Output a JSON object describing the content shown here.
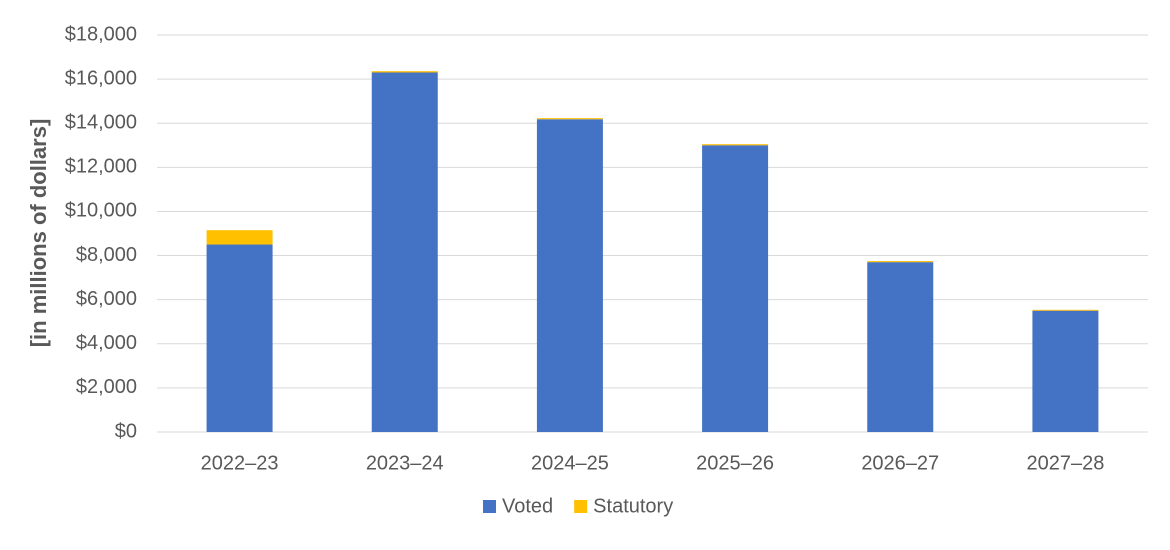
{
  "chart_data": {
    "type": "stacked_bar",
    "y_label": "[in millions of dollars]",
    "categories": [
      "2022–23",
      "2023–24",
      "2024–25",
      "2025–26",
      "2026–27",
      "2027–28"
    ],
    "series": [
      {
        "name": "Voted",
        "color": "#4472c4",
        "values": [
          8500,
          16300,
          14180,
          13000,
          7700,
          5500
        ]
      },
      {
        "name": "Statutory",
        "color": "#ffc000",
        "values": [
          650,
          60,
          50,
          50,
          50,
          40
        ]
      }
    ],
    "ylim": [
      0,
      18000
    ],
    "yticks": [
      {
        "value": 0,
        "label": "$0"
      },
      {
        "value": 2000,
        "label": "$2,000"
      },
      {
        "value": 4000,
        "label": "$4,000"
      },
      {
        "value": 6000,
        "label": "$6,000"
      },
      {
        "value": 8000,
        "label": "$8,000"
      },
      {
        "value": 10000,
        "label": "$10,000"
      },
      {
        "value": 12000,
        "label": "$12,000"
      },
      {
        "value": 14000,
        "label": "$14,000"
      },
      {
        "value": 16000,
        "label": "$16,000"
      },
      {
        "value": 18000,
        "label": "$18,000"
      }
    ],
    "grid": true,
    "legend": "bottom"
  }
}
